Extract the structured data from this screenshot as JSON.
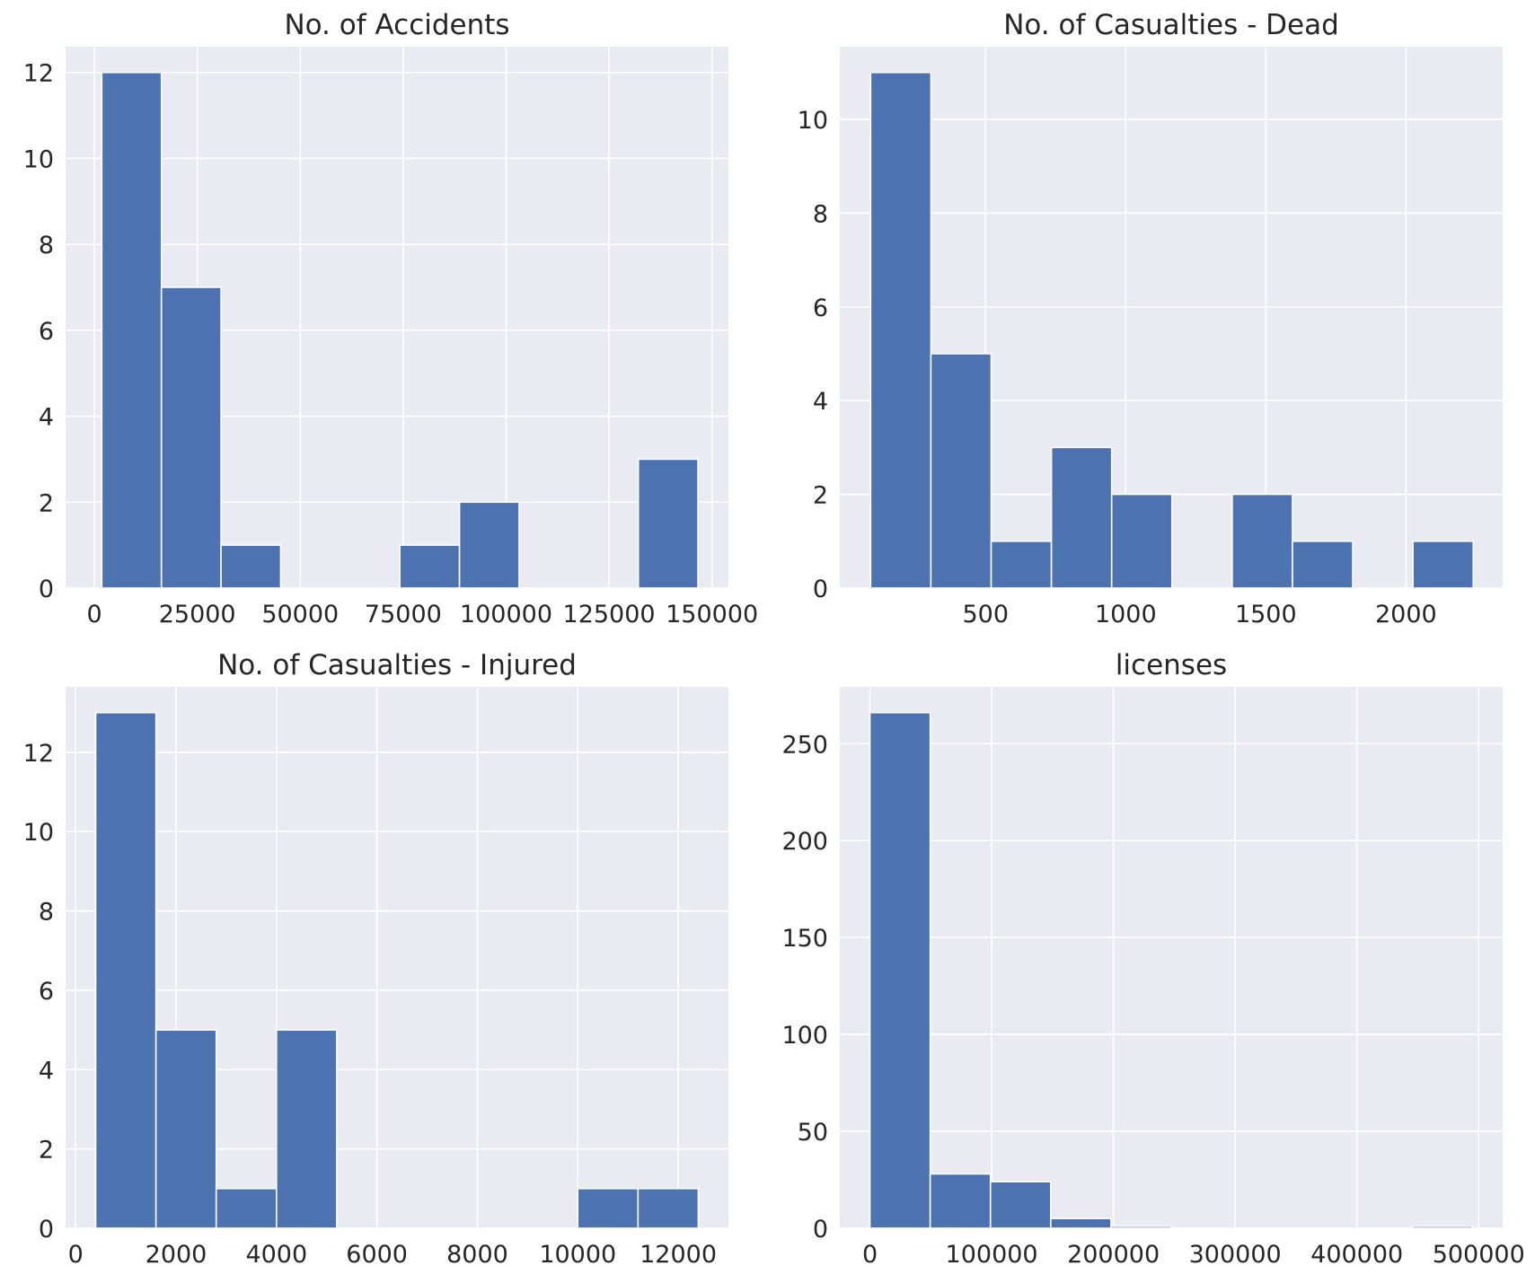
{
  "colors": {
    "background": "#ffffff",
    "panel": "#eaeaf2",
    "grid": "#ffffff",
    "bar": "#4c72b0",
    "text": "#262626"
  },
  "chart_data": [
    {
      "type": "bar",
      "title": "No. of Accidents",
      "xlabel": "",
      "ylabel": "",
      "bin_edges": [
        1800,
        16280,
        30760,
        45240,
        59720,
        74200,
        88680,
        103160,
        117640,
        132120,
        146600
      ],
      "values": [
        12,
        7,
        1,
        0,
        0,
        1,
        2,
        0,
        0,
        3
      ],
      "xlim": [
        -7000,
        154000
      ],
      "ylim": [
        0,
        12.6
      ],
      "xticks": [
        0,
        25000,
        50000,
        75000,
        100000,
        125000,
        150000
      ],
      "xtick_labels": [
        "0",
        "25000",
        "50000",
        "75000",
        "100000",
        "125000",
        "150000"
      ],
      "yticks": [
        0,
        2,
        4,
        6,
        8,
        10,
        12
      ],
      "ytick_labels": [
        "0",
        "2",
        "4",
        "6",
        "8",
        "10",
        "12"
      ],
      "grid": true
    },
    {
      "type": "bar",
      "title": "No. of Casualties - Dead",
      "xlabel": "",
      "ylabel": "",
      "bin_edges": [
        90,
        305,
        520,
        735,
        950,
        1165,
        1380,
        1595,
        1810,
        2025,
        2240
      ],
      "values": [
        11,
        5,
        1,
        3,
        2,
        0,
        2,
        1,
        0,
        1
      ],
      "xlim": [
        -20,
        2345
      ],
      "ylim": [
        0,
        11.55
      ],
      "xticks": [
        500,
        1000,
        1500,
        2000
      ],
      "xtick_labels": [
        "500",
        "1000",
        "1500",
        "2000"
      ],
      "yticks": [
        0,
        2,
        4,
        6,
        8,
        10
      ],
      "ytick_labels": [
        "0",
        "2",
        "4",
        "6",
        "8",
        "10"
      ],
      "grid": true
    },
    {
      "type": "bar",
      "title": "No. of Casualties - Injured",
      "xlabel": "",
      "ylabel": "",
      "bin_edges": [
        400,
        1600,
        2800,
        4000,
        5200,
        6400,
        7600,
        8800,
        10000,
        11200,
        12400
      ],
      "values": [
        13,
        5,
        1,
        5,
        0,
        0,
        0,
        0,
        1,
        1
      ],
      "xlim": [
        -200,
        13000
      ],
      "ylim": [
        0,
        13.65
      ],
      "xticks": [
        0,
        2000,
        4000,
        6000,
        8000,
        10000,
        12000
      ],
      "xtick_labels": [
        "0",
        "2000",
        "4000",
        "6000",
        "8000",
        "10000",
        "12000"
      ],
      "yticks": [
        0,
        2,
        4,
        6,
        8,
        10,
        12
      ],
      "ytick_labels": [
        "0",
        "2",
        "4",
        "6",
        "8",
        "10",
        "12"
      ],
      "grid": true
    },
    {
      "type": "bar",
      "title": "licenses",
      "xlabel": "",
      "ylabel": "",
      "bin_edges": [
        0,
        49500,
        99000,
        148500,
        198000,
        247500,
        297000,
        346500,
        396000,
        445500,
        495000
      ],
      "values": [
        266,
        28,
        24,
        5,
        1,
        0,
        0,
        0,
        0,
        1
      ],
      "xlim": [
        -24750,
        519750
      ],
      "ylim": [
        0,
        279.3
      ],
      "xticks": [
        0,
        100000,
        200000,
        300000,
        400000,
        500000
      ],
      "xtick_labels": [
        "0",
        "100000",
        "200000",
        "300000",
        "400000",
        "500000"
      ],
      "yticks": [
        0,
        50,
        100,
        150,
        200,
        250
      ],
      "ytick_labels": [
        "0",
        "50",
        "100",
        "150",
        "200",
        "250"
      ],
      "grid": true
    }
  ]
}
